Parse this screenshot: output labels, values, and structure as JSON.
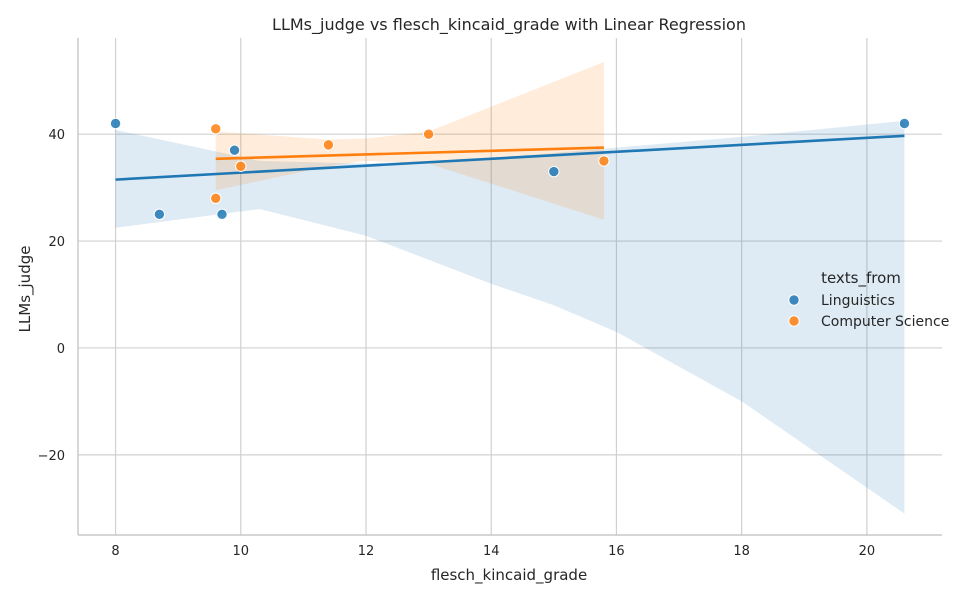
{
  "chart_data": {
    "type": "scatter",
    "title": "LLMs_judge vs flesch_kincaid_grade with Linear Regression",
    "xlabel": "flesch_kincaid_grade",
    "ylabel": "LLMs_judge",
    "xlim": [
      7.4,
      21.2
    ],
    "ylim": [
      -35,
      58
    ],
    "xticks": [
      8,
      10,
      12,
      14,
      16,
      18,
      20
    ],
    "yticks": [
      -20,
      0,
      20,
      40
    ],
    "grid": true,
    "legend": {
      "title": "texts_from",
      "position": "center-right"
    },
    "series": [
      {
        "name": "Linguistics",
        "color": "#1f77b4",
        "points": [
          {
            "x": 8.0,
            "y": 42
          },
          {
            "x": 8.7,
            "y": 25
          },
          {
            "x": 9.7,
            "y": 25
          },
          {
            "x": 9.9,
            "y": 37
          },
          {
            "x": 15.0,
            "y": 33
          },
          {
            "x": 20.6,
            "y": 42
          }
        ],
        "regression": {
          "x": [
            8.0,
            20.6
          ],
          "y": [
            31.5,
            39.7
          ]
        },
        "ci_band": {
          "x": [
            8.0,
            10.3,
            12.0,
            14.0,
            15.0,
            16.0,
            18.0,
            20.6
          ],
          "upper": [
            40.8,
            35.0,
            34.5,
            35.5,
            36.5,
            37.5,
            39.5,
            42.5
          ],
          "lower": [
            22.5,
            26.0,
            21.0,
            12.0,
            8.0,
            3.0,
            -10.0,
            -31.0
          ]
        }
      },
      {
        "name": "Computer Science",
        "color": "#ff7f0e",
        "points": [
          {
            "x": 9.6,
            "y": 41
          },
          {
            "x": 9.6,
            "y": 28
          },
          {
            "x": 10.0,
            "y": 34
          },
          {
            "x": 11.4,
            "y": 38
          },
          {
            "x": 13.0,
            "y": 40
          },
          {
            "x": 15.8,
            "y": 35
          }
        ],
        "regression": {
          "x": [
            9.6,
            15.8
          ],
          "y": [
            35.4,
            37.5
          ]
        },
        "ci_band": {
          "x": [
            9.6,
            11.4,
            12.0,
            13.0,
            15.8
          ],
          "upper": [
            40.5,
            39.0,
            39.2,
            40.5,
            53.5
          ],
          "lower": [
            29.5,
            34.0,
            35.0,
            34.5,
            24.0
          ]
        }
      }
    ]
  }
}
